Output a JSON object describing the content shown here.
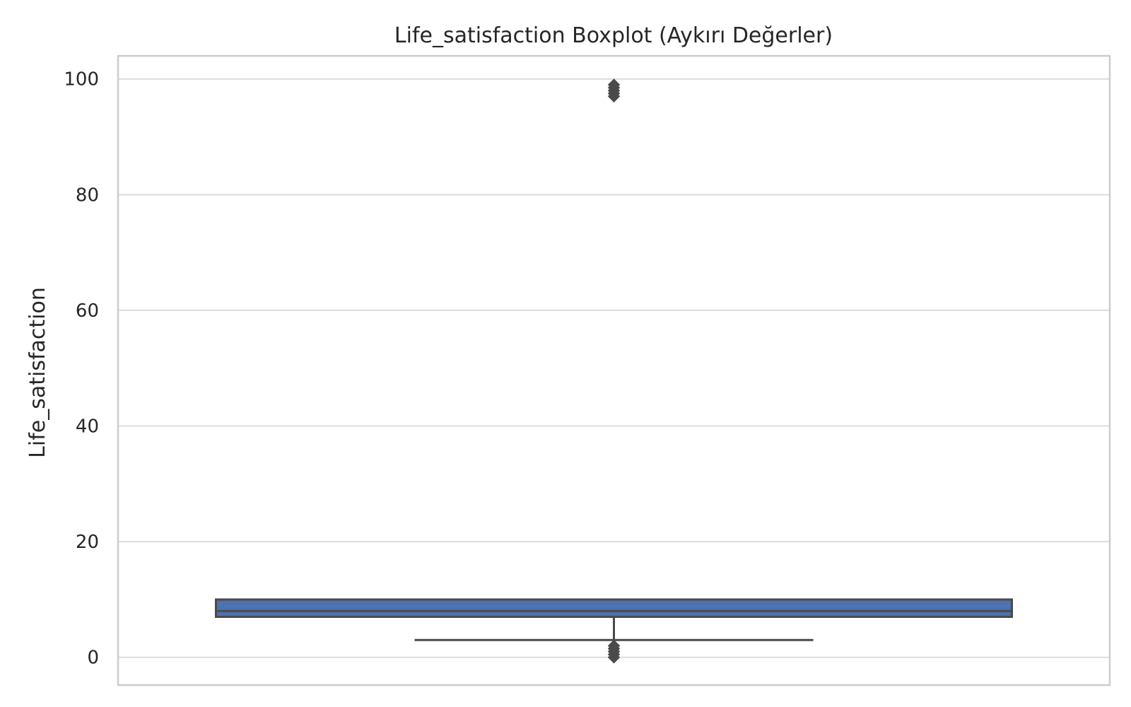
{
  "chart_data": {
    "type": "boxplot",
    "title": "Life_satisfaction Boxplot (Aykırı Değerler)",
    "xlabel": "",
    "ylabel": "Life_satisfaction",
    "ylim": [
      -4.8,
      104
    ],
    "yticks": [
      0,
      20,
      40,
      60,
      80,
      100
    ],
    "grid": true,
    "box": {
      "q1": 7,
      "median": 8,
      "q3": 10,
      "whisker_low": 3,
      "whisker_high": 10,
      "outliers": [
        0,
        0.5,
        1,
        1.5,
        2,
        97,
        97.5,
        98,
        98.5,
        99
      ]
    },
    "colors": {
      "box_fill": "#4c72b0",
      "line": "#4a4a4a",
      "grid": "#dcdcdc",
      "frame": "#cccccc"
    }
  }
}
